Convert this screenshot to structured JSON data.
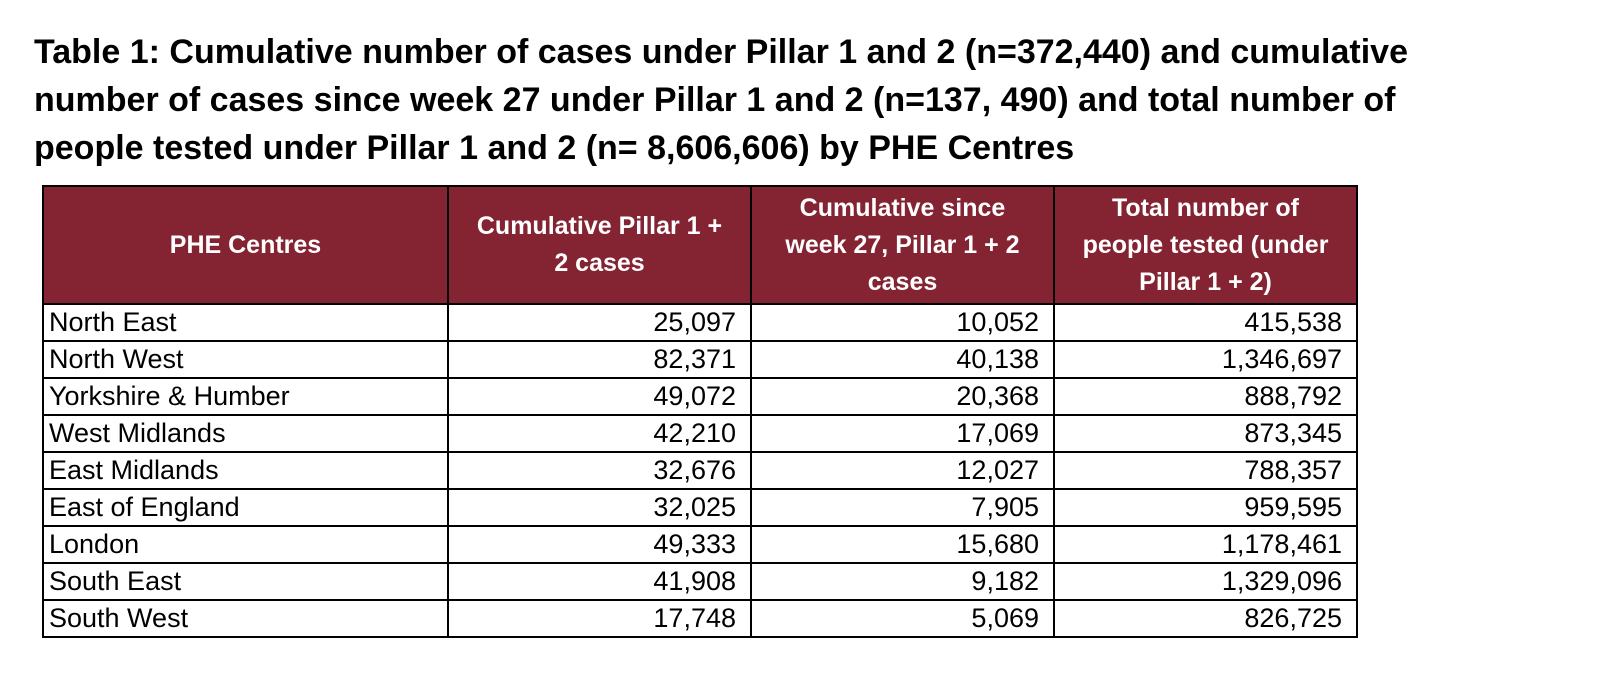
{
  "caption": {
    "line1": "Table 1: Cumulative number of cases under Pillar 1 and 2 (n=372,440) and cumulative",
    "line2": "number of cases since week 27 under Pillar 1 and 2 (n=137, 490) and total number of",
    "line3": "people tested under Pillar 1 and 2 (n= 8,606,606) by PHE Centres"
  },
  "table": {
    "header_bg": "#842331",
    "header_text_color": "#ffffff",
    "headers": [
      [
        "PHE Centres"
      ],
      [
        "Cumulative Pillar 1 +",
        "2 cases"
      ],
      [
        "Cumulative since",
        "week 27, Pillar 1 + 2",
        "cases"
      ],
      [
        "Total number of",
        "people tested (under",
        "Pillar 1 + 2)"
      ]
    ],
    "rows": [
      [
        "North East",
        "25,097",
        "10,052",
        "415,538"
      ],
      [
        "North West",
        "82,371",
        "40,138",
        "1,346,697"
      ],
      [
        "Yorkshire & Humber",
        "49,072",
        "20,368",
        "888,792"
      ],
      [
        "West Midlands",
        "42,210",
        "17,069",
        "873,345"
      ],
      [
        "East Midlands",
        "32,676",
        "12,027",
        "788,357"
      ],
      [
        "East of England",
        "32,025",
        "7,905",
        "959,595"
      ],
      [
        "London",
        "49,333",
        "15,680",
        "1,178,461"
      ],
      [
        "South East",
        "41,908",
        "9,182",
        "1,329,096"
      ],
      [
        "South West",
        "17,748",
        "5,069",
        "826,725"
      ]
    ]
  }
}
